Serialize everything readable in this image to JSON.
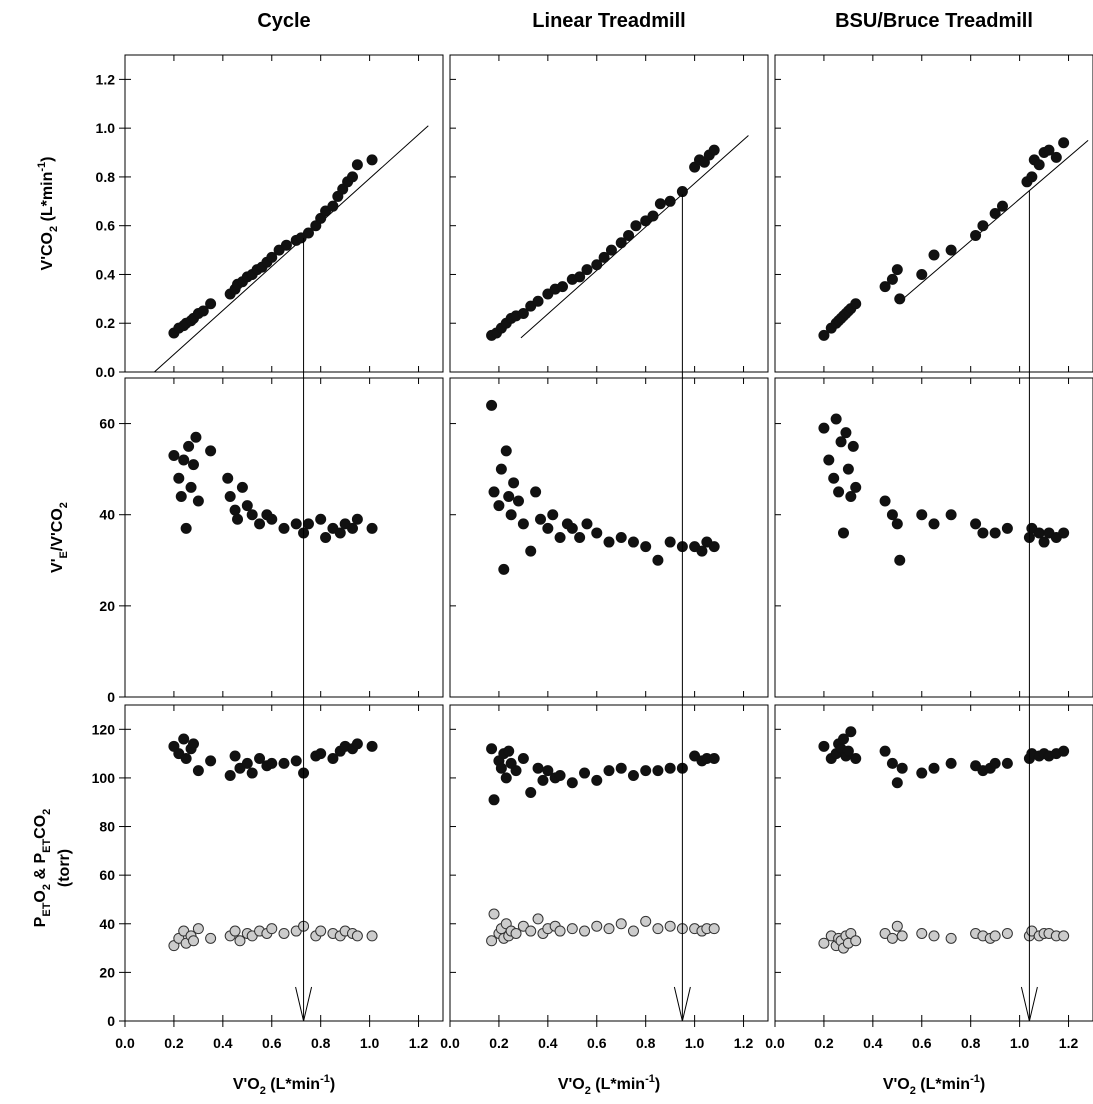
{
  "columns": [
    {
      "title": "Cycle",
      "threshold_x": 0.73
    },
    {
      "title": "Linear Treadmill",
      "threshold_x": 0.95
    },
    {
      "title": "BSU/Bruce Treadmill",
      "threshold_x": 1.04
    }
  ],
  "x_axis": {
    "range": [
      0.0,
      1.3
    ],
    "ticks": [
      "0.0",
      "0.2",
      "0.4",
      "0.6",
      "0.8",
      "1.0",
      "1.2"
    ],
    "label": {
      "main": "V'O",
      "sub": "2",
      "tail": " (L*min",
      "sup": "-1",
      "end": ")"
    }
  },
  "rows": [
    {
      "ylim": [
        0.0,
        1.3
      ],
      "yticks": [
        "0.0",
        "0.2",
        "0.4",
        "0.6",
        "0.8",
        "1.0",
        "1.2"
      ],
      "ylabel": {
        "main": "V'CO",
        "sub": "2",
        "tail": " (L*min",
        "sup": "-1",
        "end": ")"
      }
    },
    {
      "ylim": [
        0,
        70
      ],
      "yticks": [
        "0",
        "20",
        "40",
        "60"
      ],
      "ylabel": {
        "a": "V'",
        "a_sub": "E",
        "b": "/V'CO",
        "b_sub": "2"
      }
    },
    {
      "ylim": [
        0,
        130
      ],
      "yticks": [
        "0",
        "20",
        "40",
        "60",
        "80",
        "100",
        "120"
      ],
      "ylabel": {
        "a": "P",
        "a_sub": "ET",
        "b": "O",
        "b_sub": "2",
        "c": " & P",
        "c_sub": "ET",
        "d": "CO",
        "d_sub": "2",
        "line2": "(torr)"
      }
    }
  ],
  "colors": {
    "filled": "#111111",
    "open_fill": "#cccccc",
    "open_stroke": "#333333"
  },
  "chart_data": [
    {
      "type": "scatter",
      "panel": "cycle-vco2",
      "x": [
        0.2,
        0.22,
        0.24,
        0.25,
        0.27,
        0.28,
        0.3,
        0.32,
        0.35,
        0.43,
        0.45,
        0.46,
        0.48,
        0.5,
        0.52,
        0.54,
        0.56,
        0.58,
        0.6,
        0.63,
        0.66,
        0.7,
        0.72,
        0.75,
        0.78,
        0.8,
        0.82,
        0.85,
        0.87,
        0.89,
        0.91,
        0.93,
        0.95,
        1.01
      ],
      "y": [
        0.16,
        0.18,
        0.19,
        0.2,
        0.21,
        0.22,
        0.24,
        0.25,
        0.28,
        0.32,
        0.34,
        0.36,
        0.37,
        0.39,
        0.4,
        0.42,
        0.43,
        0.45,
        0.47,
        0.5,
        0.52,
        0.54,
        0.55,
        0.57,
        0.6,
        0.63,
        0.66,
        0.68,
        0.72,
        0.75,
        0.78,
        0.8,
        0.85,
        0.87
      ],
      "fit_line": {
        "x": [
          0.12,
          1.24
        ],
        "y": [
          0.0,
          1.01
        ]
      }
    },
    {
      "type": "scatter",
      "panel": "cycle-ve-vco2",
      "x": [
        0.2,
        0.22,
        0.23,
        0.24,
        0.25,
        0.26,
        0.27,
        0.28,
        0.29,
        0.3,
        0.35,
        0.42,
        0.43,
        0.45,
        0.46,
        0.48,
        0.5,
        0.52,
        0.55,
        0.58,
        0.6,
        0.65,
        0.7,
        0.73,
        0.75,
        0.8,
        0.82,
        0.85,
        0.88,
        0.9,
        0.93,
        0.95,
        1.01
      ],
      "y": [
        53,
        48,
        44,
        52,
        37,
        55,
        46,
        51,
        57,
        43,
        54,
        48,
        44,
        41,
        39,
        46,
        42,
        40,
        38,
        40,
        39,
        37,
        38,
        36,
        38,
        39,
        35,
        37,
        36,
        38,
        37,
        39,
        37
      ]
    },
    {
      "type": "scatter",
      "panel": "cycle-pet",
      "series": [
        {
          "marker": "filled",
          "x": [
            0.2,
            0.22,
            0.24,
            0.25,
            0.27,
            0.28,
            0.3,
            0.35,
            0.43,
            0.45,
            0.47,
            0.5,
            0.52,
            0.55,
            0.58,
            0.6,
            0.65,
            0.7,
            0.73,
            0.78,
            0.8,
            0.85,
            0.88,
            0.9,
            0.93,
            0.95,
            1.01
          ],
          "y": [
            113,
            110,
            116,
            108,
            112,
            114,
            103,
            107,
            101,
            109,
            104,
            106,
            102,
            108,
            105,
            106,
            106,
            107,
            102,
            109,
            110,
            108,
            111,
            113,
            112,
            114,
            113
          ]
        },
        {
          "marker": "open",
          "x": [
            0.2,
            0.22,
            0.24,
            0.25,
            0.27,
            0.28,
            0.3,
            0.35,
            0.43,
            0.45,
            0.47,
            0.5,
            0.52,
            0.55,
            0.58,
            0.6,
            0.65,
            0.7,
            0.73,
            0.78,
            0.8,
            0.85,
            0.88,
            0.9,
            0.93,
            0.95,
            1.01
          ],
          "y": [
            31,
            34,
            37,
            32,
            35,
            33,
            38,
            34,
            35,
            37,
            33,
            36,
            35,
            37,
            36,
            38,
            36,
            37,
            39,
            35,
            37,
            36,
            35,
            37,
            36,
            35,
            35
          ]
        }
      ]
    },
    {
      "type": "scatter",
      "panel": "linear-vco2",
      "x": [
        0.17,
        0.19,
        0.21,
        0.23,
        0.25,
        0.27,
        0.3,
        0.33,
        0.36,
        0.4,
        0.43,
        0.46,
        0.5,
        0.53,
        0.56,
        0.6,
        0.63,
        0.66,
        0.7,
        0.73,
        0.76,
        0.8,
        0.83,
        0.86,
        0.9,
        0.95,
        1.0,
        1.02,
        1.04,
        1.06,
        1.08
      ],
      "y": [
        0.15,
        0.16,
        0.18,
        0.2,
        0.22,
        0.23,
        0.24,
        0.27,
        0.29,
        0.32,
        0.34,
        0.35,
        0.38,
        0.39,
        0.42,
        0.44,
        0.47,
        0.5,
        0.53,
        0.56,
        0.6,
        0.62,
        0.64,
        0.69,
        0.7,
        0.74,
        0.84,
        0.87,
        0.86,
        0.89,
        0.91
      ],
      "fit_line": {
        "x": [
          0.29,
          1.22
        ],
        "y": [
          0.14,
          0.97
        ]
      }
    },
    {
      "type": "scatter",
      "panel": "linear-ve-vco2",
      "x": [
        0.17,
        0.18,
        0.2,
        0.21,
        0.22,
        0.23,
        0.24,
        0.25,
        0.26,
        0.28,
        0.3,
        0.33,
        0.35,
        0.37,
        0.4,
        0.42,
        0.45,
        0.48,
        0.5,
        0.53,
        0.56,
        0.6,
        0.65,
        0.7,
        0.75,
        0.8,
        0.85,
        0.9,
        0.95,
        1.0,
        1.03,
        1.05,
        1.08
      ],
      "y": [
        64,
        45,
        42,
        50,
        28,
        54,
        44,
        40,
        47,
        43,
        38,
        32,
        45,
        39,
        37,
        40,
        35,
        38,
        37,
        35,
        38,
        36,
        34,
        35,
        34,
        33,
        30,
        34,
        33,
        33,
        32,
        34,
        33
      ]
    },
    {
      "type": "scatter",
      "panel": "linear-pet",
      "series": [
        {
          "marker": "filled",
          "x": [
            0.17,
            0.18,
            0.2,
            0.21,
            0.22,
            0.23,
            0.24,
            0.25,
            0.27,
            0.3,
            0.33,
            0.36,
            0.38,
            0.4,
            0.43,
            0.45,
            0.5,
            0.55,
            0.6,
            0.65,
            0.7,
            0.75,
            0.8,
            0.85,
            0.9,
            0.95,
            1.0,
            1.03,
            1.05,
            1.08
          ],
          "y": [
            112,
            91,
            107,
            104,
            110,
            100,
            111,
            106,
            103,
            108,
            94,
            104,
            99,
            103,
            100,
            101,
            98,
            102,
            99,
            103,
            104,
            101,
            103,
            103,
            104,
            104,
            109,
            107,
            108,
            108
          ]
        },
        {
          "marker": "open",
          "x": [
            0.17,
            0.18,
            0.2,
            0.21,
            0.22,
            0.23,
            0.24,
            0.25,
            0.27,
            0.3,
            0.33,
            0.36,
            0.38,
            0.4,
            0.43,
            0.45,
            0.5,
            0.55,
            0.6,
            0.65,
            0.7,
            0.75,
            0.8,
            0.85,
            0.9,
            0.95,
            1.0,
            1.03,
            1.05,
            1.08
          ],
          "y": [
            33,
            44,
            36,
            38,
            34,
            40,
            35,
            37,
            36,
            39,
            37,
            42,
            36,
            38,
            39,
            37,
            38,
            37,
            39,
            38,
            40,
            37,
            41,
            38,
            39,
            38,
            38,
            37,
            38,
            38
          ]
        }
      ]
    },
    {
      "type": "scatter",
      "panel": "bruce-vco2",
      "x": [
        0.2,
        0.23,
        0.25,
        0.26,
        0.27,
        0.28,
        0.29,
        0.3,
        0.31,
        0.33,
        0.45,
        0.48,
        0.5,
        0.51,
        0.6,
        0.65,
        0.72,
        0.82,
        0.85,
        0.9,
        0.93,
        1.03,
        1.05,
        1.06,
        1.08,
        1.1,
        1.12,
        1.15,
        1.18
      ],
      "y": [
        0.15,
        0.18,
        0.2,
        0.21,
        0.22,
        0.23,
        0.24,
        0.25,
        0.26,
        0.28,
        0.35,
        0.38,
        0.42,
        0.3,
        0.4,
        0.48,
        0.5,
        0.56,
        0.6,
        0.65,
        0.68,
        0.78,
        0.8,
        0.87,
        0.85,
        0.9,
        0.91,
        0.88,
        0.94
      ],
      "fit_line": {
        "x": [
          0.5,
          1.28
        ],
        "y": [
          0.28,
          0.95
        ]
      }
    },
    {
      "type": "scatter",
      "panel": "bruce-ve-vco2",
      "x": [
        0.2,
        0.22,
        0.24,
        0.25,
        0.26,
        0.27,
        0.28,
        0.29,
        0.3,
        0.31,
        0.32,
        0.33,
        0.45,
        0.48,
        0.5,
        0.51,
        0.6,
        0.65,
        0.72,
        0.82,
        0.85,
        0.9,
        0.95,
        1.04,
        1.05,
        1.08,
        1.1,
        1.12,
        1.15,
        1.18
      ],
      "y": [
        59,
        52,
        48,
        61,
        45,
        56,
        36,
        58,
        50,
        44,
        55,
        46,
        43,
        40,
        38,
        30,
        40,
        38,
        40,
        38,
        36,
        36,
        37,
        35,
        37,
        36,
        34,
        36,
        35,
        36
      ]
    },
    {
      "type": "scatter",
      "panel": "bruce-pet",
      "series": [
        {
          "marker": "filled",
          "x": [
            0.2,
            0.23,
            0.25,
            0.26,
            0.27,
            0.28,
            0.29,
            0.3,
            0.31,
            0.33,
            0.45,
            0.48,
            0.5,
            0.52,
            0.6,
            0.65,
            0.72,
            0.82,
            0.85,
            0.88,
            0.9,
            0.95,
            1.04,
            1.05,
            1.08,
            1.1,
            1.12,
            1.15,
            1.18
          ],
          "y": [
            113,
            108,
            110,
            114,
            112,
            116,
            109,
            111,
            119,
            108,
            111,
            106,
            98,
            104,
            102,
            104,
            106,
            105,
            103,
            104,
            106,
            106,
            108,
            110,
            109,
            110,
            109,
            110,
            111
          ]
        },
        {
          "marker": "open",
          "x": [
            0.2,
            0.23,
            0.25,
            0.26,
            0.27,
            0.28,
            0.29,
            0.3,
            0.31,
            0.33,
            0.45,
            0.48,
            0.5,
            0.52,
            0.6,
            0.65,
            0.72,
            0.82,
            0.85,
            0.88,
            0.9,
            0.95,
            1.04,
            1.05,
            1.08,
            1.1,
            1.12,
            1.15,
            1.18
          ],
          "y": [
            32,
            35,
            31,
            34,
            33,
            30,
            35,
            32,
            36,
            33,
            36,
            34,
            39,
            35,
            36,
            35,
            34,
            36,
            35,
            34,
            35,
            36,
            35,
            37,
            35,
            36,
            36,
            35,
            35
          ]
        }
      ]
    }
  ]
}
